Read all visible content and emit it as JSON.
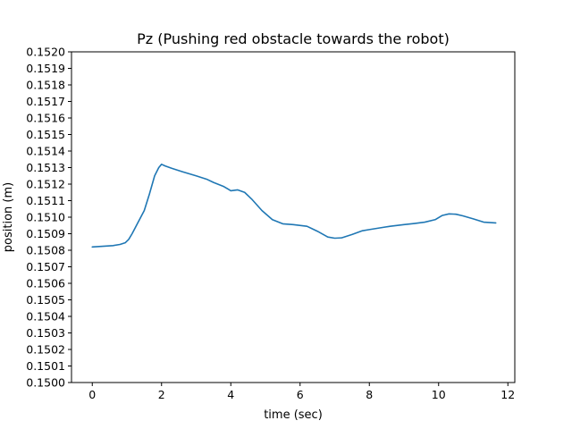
{
  "chart_data": {
    "type": "line",
    "title": "Pz (Pushing red obstacle towards the robot)",
    "xlabel": "time (sec)",
    "ylabel": "position (m)",
    "xlim": [
      -0.6,
      12.2
    ],
    "ylim": [
      0.15,
      0.152
    ],
    "x_ticks": [
      0,
      2,
      4,
      6,
      8,
      10,
      12
    ],
    "x_tick_labels": [
      "0",
      "2",
      "4",
      "6",
      "8",
      "10",
      "12"
    ],
    "y_ticks": [
      0.15,
      0.1501,
      0.1502,
      0.1503,
      0.1504,
      0.1505,
      0.1506,
      0.1507,
      0.1508,
      0.1509,
      0.151,
      0.1511,
      0.1512,
      0.1513,
      0.1514,
      0.1515,
      0.1516,
      0.1517,
      0.1518,
      0.1519,
      0.152
    ],
    "y_tick_labels": [
      "0.1500",
      "0.1501",
      "0.1502",
      "0.1503",
      "0.1504",
      "0.1505",
      "0.1506",
      "0.1507",
      "0.1508",
      "0.1509",
      "0.1510",
      "0.1511",
      "0.1512",
      "0.1513",
      "0.1514",
      "0.1515",
      "0.1516",
      "0.1517",
      "0.1518",
      "0.1519",
      "0.1520"
    ],
    "grid": false,
    "legend": "none",
    "series": [
      {
        "color": "#1f77b4",
        "x": [
          0.0,
          0.3,
          0.6,
          0.8,
          0.95,
          1.05,
          1.15,
          1.3,
          1.5,
          1.65,
          1.8,
          1.92,
          2.0,
          2.1,
          2.3,
          2.6,
          3.0,
          3.3,
          3.5,
          3.8,
          4.0,
          4.2,
          4.4,
          4.6,
          4.9,
          5.2,
          5.5,
          5.8,
          6.2,
          6.5,
          6.8,
          7.0,
          7.2,
          7.5,
          7.8,
          8.0,
          8.3,
          8.6,
          9.0,
          9.3,
          9.6,
          9.9,
          10.1,
          10.3,
          10.5,
          10.7,
          11.0,
          11.3,
          11.65
        ],
        "y": [
          0.15082,
          0.150824,
          0.150828,
          0.150835,
          0.150845,
          0.150865,
          0.1509,
          0.15096,
          0.15104,
          0.15114,
          0.15125,
          0.1513,
          0.15132,
          0.15131,
          0.151295,
          0.151275,
          0.15125,
          0.15123,
          0.15121,
          0.151185,
          0.15116,
          0.151165,
          0.15115,
          0.15111,
          0.15104,
          0.150985,
          0.15096,
          0.150955,
          0.150945,
          0.150915,
          0.15088,
          0.150873,
          0.150875,
          0.150895,
          0.150918,
          0.150925,
          0.150935,
          0.150945,
          0.150955,
          0.150962,
          0.15097,
          0.150985,
          0.15101,
          0.15102,
          0.151018,
          0.151008,
          0.15099,
          0.15097,
          0.150965
        ]
      }
    ]
  }
}
